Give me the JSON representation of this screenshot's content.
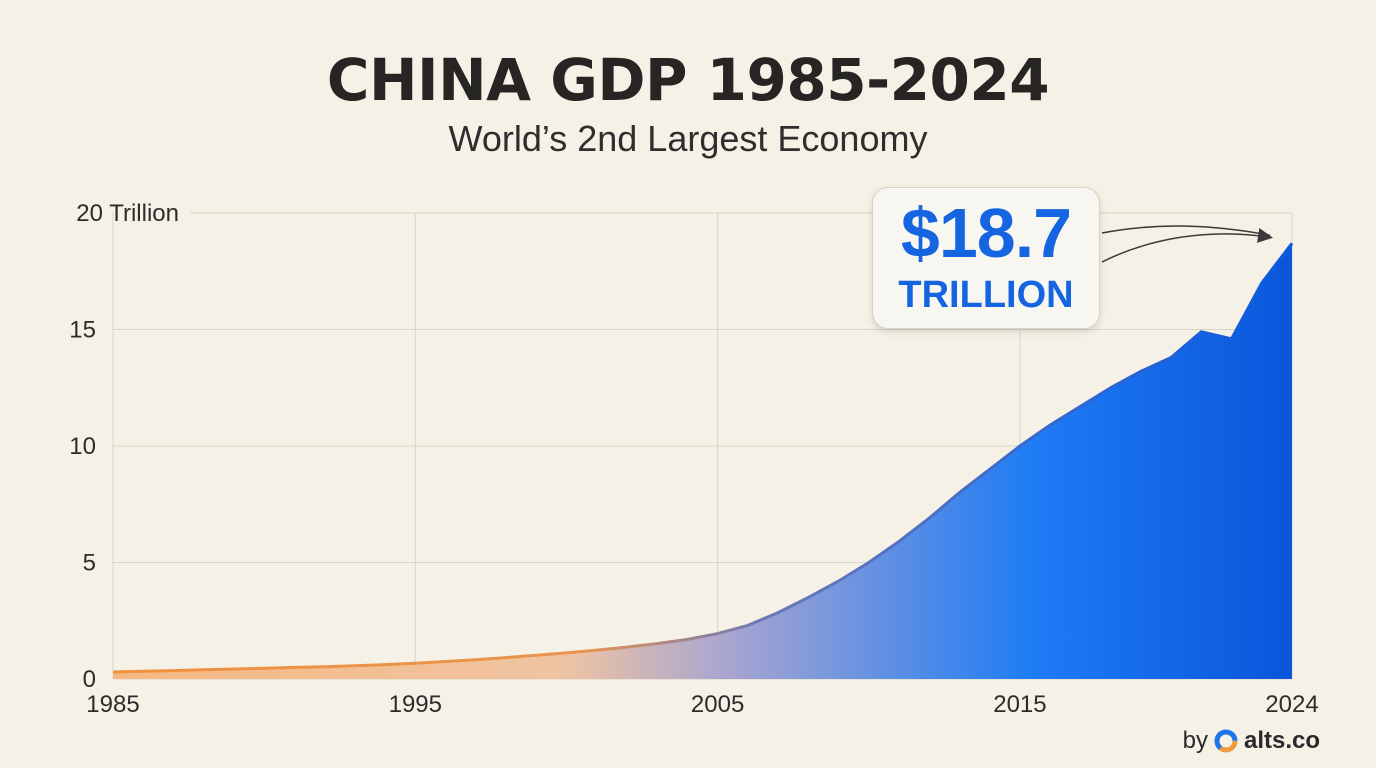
{
  "title": "CHINA GDP 1985-2024",
  "subtitle": "World’s 2nd Largest Economy",
  "callout": {
    "value": "$18.7",
    "unit": "TRILLION"
  },
  "credit": {
    "by": "by",
    "brand": "alts.co",
    "logo_icon": "alts-logo-icon"
  },
  "colors": {
    "early": "#f4a35a",
    "late": "#0a6cf0",
    "callout_text": "#1565e0",
    "background": "#f6f1e6"
  },
  "chart_data": {
    "type": "area",
    "x": [
      1985,
      1986,
      1987,
      1988,
      1989,
      1990,
      1991,
      1992,
      1993,
      1994,
      1995,
      1996,
      1997,
      1998,
      1999,
      2000,
      2001,
      2002,
      2003,
      2004,
      2005,
      2006,
      2007,
      2008,
      2009,
      2010,
      2011,
      2012,
      2013,
      2014,
      2015,
      2016,
      2017,
      2018,
      2019,
      2020,
      2021,
      2022,
      2023,
      2024
    ],
    "values": [
      0.3,
      0.33,
      0.36,
      0.4,
      0.43,
      0.46,
      0.5,
      0.53,
      0.57,
      0.62,
      0.68,
      0.75,
      0.83,
      0.92,
      1.02,
      1.12,
      1.24,
      1.37,
      1.52,
      1.7,
      1.95,
      2.3,
      2.85,
      3.5,
      4.2,
      5.0,
      5.9,
      6.9,
      8.0,
      9.0,
      10.0,
      10.9,
      11.7,
      12.5,
      13.2,
      13.8,
      14.9,
      14.6,
      17.0,
      18.7
    ],
    "ylim": [
      0,
      20
    ],
    "xlim": [
      1985,
      2024
    ],
    "y_ticks": [
      0,
      5,
      10,
      15,
      20
    ],
    "y_tick_labels": [
      "0",
      "5",
      "10",
      "15",
      "20 Trillion"
    ],
    "x_ticks": [
      1985,
      1995,
      2005,
      2015,
      2024
    ],
    "x_tick_labels": [
      "1985",
      "1995",
      "2005",
      "2015",
      "2024"
    ],
    "grid": true,
    "annotation": {
      "text": "$18.7 TRILLION",
      "x": 2024,
      "y": 18.7
    }
  }
}
